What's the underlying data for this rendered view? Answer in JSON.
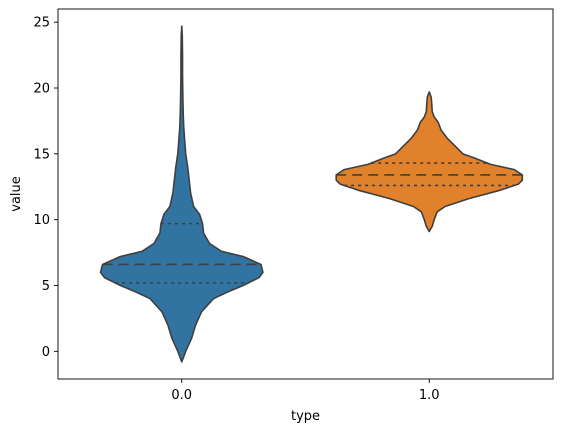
{
  "chart_data": {
    "type": "violin",
    "title": "",
    "xlabel": "type",
    "ylabel": "value",
    "categories": [
      "0.0",
      "1.0"
    ],
    "ylim": [
      -2.1,
      26.0
    ],
    "yticks": [
      0,
      5,
      10,
      15,
      20,
      25
    ],
    "grid": false,
    "legend": "none",
    "violins": [
      {
        "category": "0.0",
        "color": "#3274a1",
        "min": -0.8,
        "max": 24.7,
        "quartiles": [
          5.2,
          6.6,
          9.7
        ],
        "density": [
          [
            -0.8,
            0.0
          ],
          [
            0.0,
            0.04
          ],
          [
            1.0,
            0.1
          ],
          [
            2.0,
            0.14
          ],
          [
            3.0,
            0.2
          ],
          [
            4.0,
            0.32
          ],
          [
            4.5,
            0.46
          ],
          [
            5.0,
            0.62
          ],
          [
            5.6,
            0.78
          ],
          [
            6.0,
            0.82
          ],
          [
            6.6,
            0.8
          ],
          [
            7.2,
            0.62
          ],
          [
            7.6,
            0.4
          ],
          [
            8.2,
            0.28
          ],
          [
            9.0,
            0.22
          ],
          [
            9.7,
            0.21
          ],
          [
            10.4,
            0.18
          ],
          [
            11.0,
            0.12
          ],
          [
            12.0,
            0.09
          ],
          [
            13.0,
            0.075
          ],
          [
            14.0,
            0.06
          ],
          [
            15.0,
            0.04
          ],
          [
            16.0,
            0.03
          ],
          [
            17.0,
            0.02
          ],
          [
            18.0,
            0.015
          ],
          [
            19.0,
            0.012
          ],
          [
            20.0,
            0.01
          ],
          [
            21.0,
            0.008
          ],
          [
            22.5,
            0.008
          ],
          [
            24.0,
            0.005
          ],
          [
            24.7,
            0.0
          ]
        ]
      },
      {
        "category": "1.0",
        "color": "#e1812c",
        "min": 9.1,
        "max": 19.7,
        "quartiles": [
          12.6,
          13.4,
          14.3
        ],
        "density": [
          [
            9.1,
            0.0
          ],
          [
            9.5,
            0.03
          ],
          [
            10.0,
            0.05
          ],
          [
            10.6,
            0.08
          ],
          [
            11.0,
            0.16
          ],
          [
            11.6,
            0.4
          ],
          [
            12.2,
            0.7
          ],
          [
            12.7,
            0.9
          ],
          [
            13.0,
            0.94
          ],
          [
            13.4,
            0.94
          ],
          [
            13.8,
            0.86
          ],
          [
            14.2,
            0.62
          ],
          [
            14.7,
            0.45
          ],
          [
            15.0,
            0.34
          ],
          [
            15.6,
            0.26
          ],
          [
            16.2,
            0.18
          ],
          [
            16.8,
            0.12
          ],
          [
            17.4,
            0.09
          ],
          [
            17.8,
            0.05
          ],
          [
            18.2,
            0.03
          ],
          [
            18.8,
            0.025
          ],
          [
            19.3,
            0.02
          ],
          [
            19.7,
            0.0
          ]
        ]
      }
    ]
  }
}
